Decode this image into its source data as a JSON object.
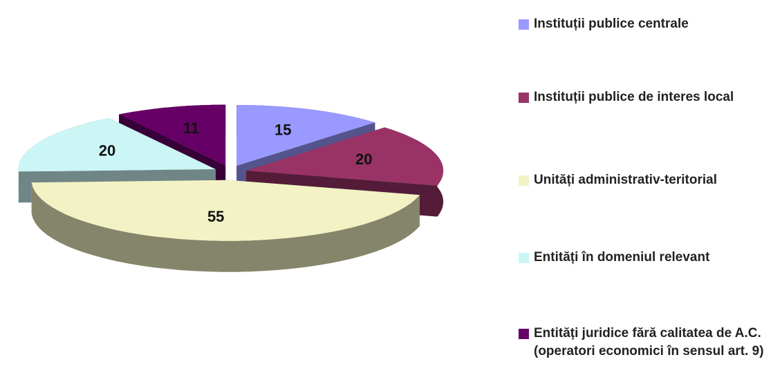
{
  "chart_data": {
    "type": "pie3d",
    "categories": [
      "Instituții publice centrale",
      "Instituții publice de interes local",
      "Unități administrativ-teritorial",
      "Entități în domeniul relevant",
      "Entități juridice fără calitatea de A.C. (operatori economici în sensul art. 9)"
    ],
    "values": [
      15,
      20,
      55,
      20,
      11
    ],
    "colors": [
      "#9999ff",
      "#993366",
      "#f2f2c4",
      "#ccf5f5",
      "#660066"
    ],
    "legend": "right"
  }
}
